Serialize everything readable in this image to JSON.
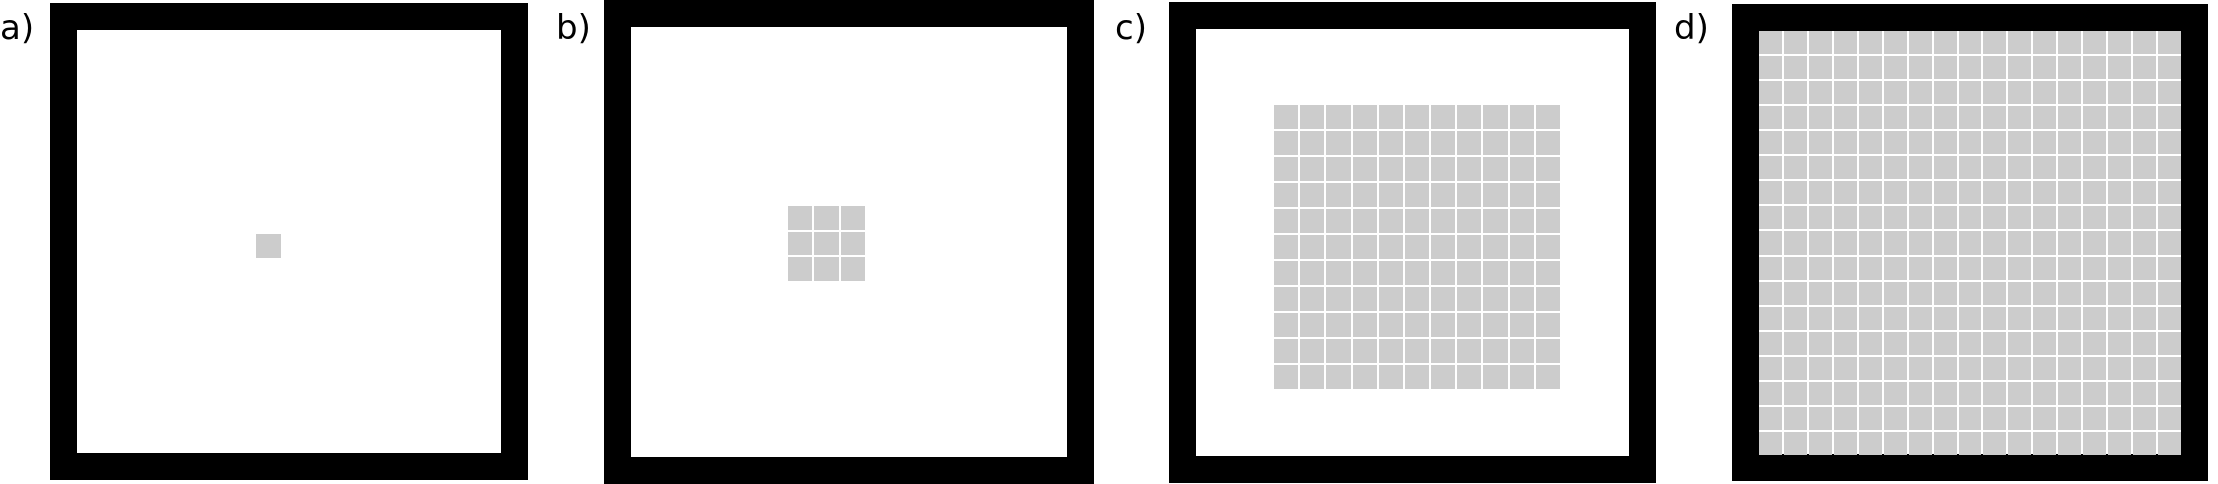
{
  "colors": {
    "frame": "#000000",
    "cell": "#cccccc",
    "background": "#ffffff"
  },
  "panels": [
    {
      "id": "a",
      "label": "a)",
      "grid_cols": 1,
      "grid_rows": 1
    },
    {
      "id": "b",
      "label": "b)",
      "grid_cols": 3,
      "grid_rows": 3
    },
    {
      "id": "c",
      "label": "c)",
      "grid_cols": 11,
      "grid_rows": 11
    },
    {
      "id": "d",
      "label": "d)",
      "grid_cols": 17,
      "grid_rows": 17
    }
  ]
}
